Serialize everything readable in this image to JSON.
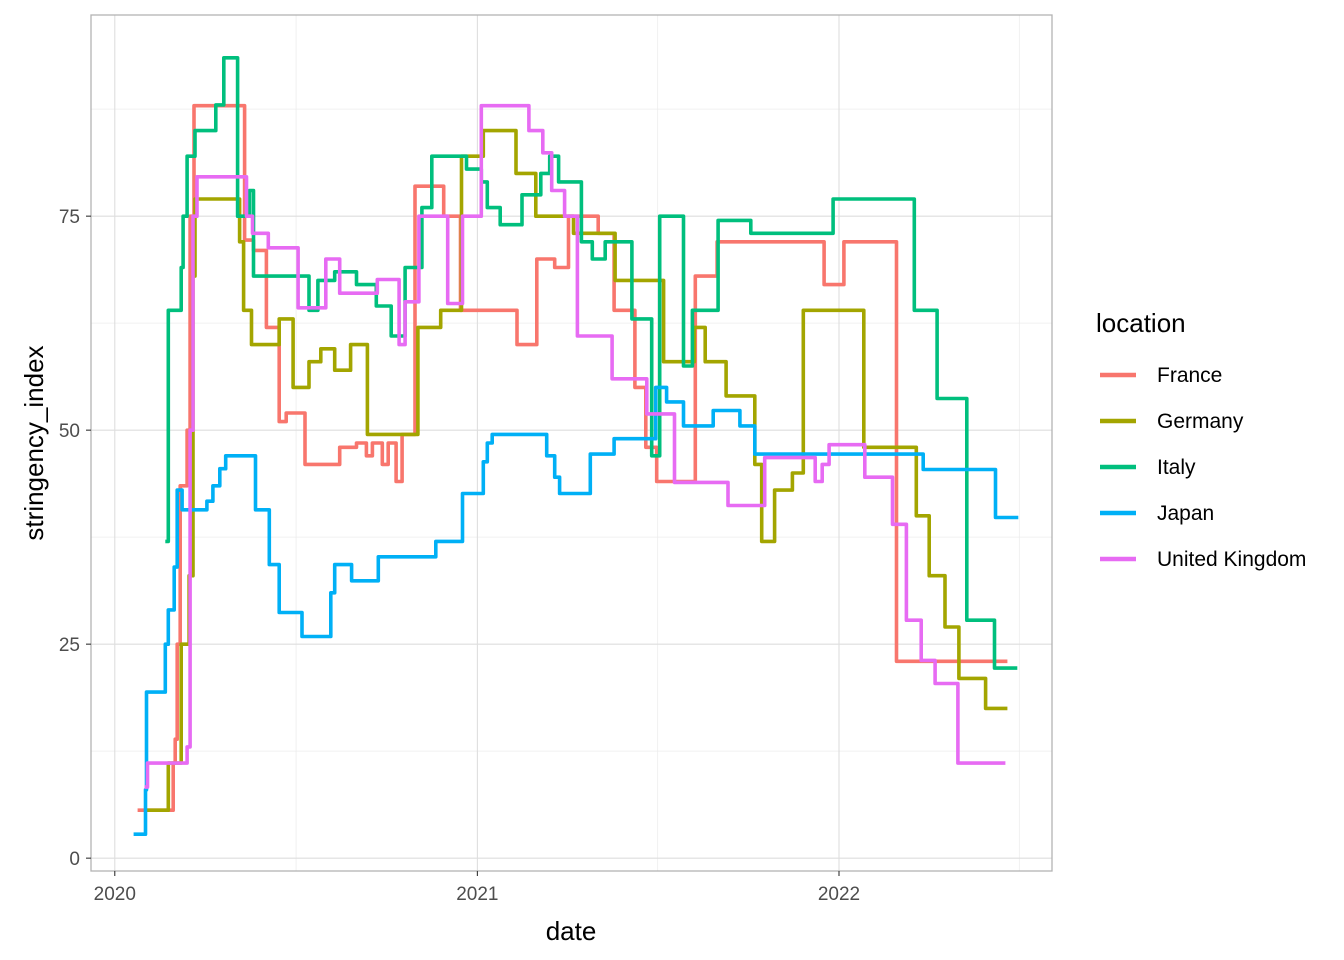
{
  "chart_data": {
    "type": "line",
    "title": "",
    "xlabel": "date",
    "ylabel": "stringency_index",
    "x_type": "date",
    "x_ticks": [
      "2020",
      "2021",
      "2022"
    ],
    "x_tick_dates": [
      "2020-01-01",
      "2021-01-01",
      "2022-01-01"
    ],
    "xlim": [
      "2019-12-08",
      "2022-08-04"
    ],
    "y_ticks": [
      "0",
      "25",
      "50",
      "75"
    ],
    "ylim": [
      -1.5,
      98.5
    ],
    "grid": true,
    "step": true,
    "legend_title": "location",
    "legend_position": "right",
    "series": [
      {
        "name": "France",
        "color": "#F8766D",
        "points": [
          [
            "2020-01-24",
            5.6
          ],
          [
            "2020-02-29",
            11.1
          ],
          [
            "2020-03-02",
            13.9
          ],
          [
            "2020-03-04",
            25.0
          ],
          [
            "2020-03-07",
            43.5
          ],
          [
            "2020-03-14",
            50.0
          ],
          [
            "2020-03-17",
            75.0
          ],
          [
            "2020-03-21",
            87.9
          ],
          [
            "2020-05-11",
            72.2
          ],
          [
            "2020-05-20",
            71.0
          ],
          [
            "2020-06-02",
            62.0
          ],
          [
            "2020-06-15",
            51.0
          ],
          [
            "2020-06-22",
            52.0
          ],
          [
            "2020-07-11",
            46.0
          ],
          [
            "2020-08-15",
            48.0
          ],
          [
            "2020-09-01",
            48.5
          ],
          [
            "2020-09-11",
            47.0
          ],
          [
            "2020-09-17",
            48.5
          ],
          [
            "2020-09-27",
            46.0
          ],
          [
            "2020-10-03",
            48.5
          ],
          [
            "2020-10-11",
            44.0
          ],
          [
            "2020-10-17",
            49.5
          ],
          [
            "2020-10-30",
            78.5
          ],
          [
            "2020-11-28",
            75.0
          ],
          [
            "2020-12-15",
            64.0
          ],
          [
            "2021-01-16",
            64.0
          ],
          [
            "2021-02-10",
            60.0
          ],
          [
            "2021-03-02",
            70.0
          ],
          [
            "2021-03-20",
            69.0
          ],
          [
            "2021-04-03",
            75.0
          ],
          [
            "2021-05-03",
            73.0
          ],
          [
            "2021-05-19",
            64.0
          ],
          [
            "2021-06-09",
            55.0
          ],
          [
            "2021-06-20",
            48.0
          ],
          [
            "2021-07-01",
            44.0
          ],
          [
            "2021-07-21",
            44.0
          ],
          [
            "2021-08-09",
            68.0
          ],
          [
            "2021-08-31",
            72.0
          ],
          [
            "2021-12-17",
            67.0
          ],
          [
            "2022-01-06",
            72.0
          ],
          [
            "2022-02-28",
            23.0
          ],
          [
            "2022-06-20",
            23.0
          ]
        ]
      },
      {
        "name": "Germany",
        "color": "#A3A500",
        "points": [
          [
            "2020-02-01",
            5.6
          ],
          [
            "2020-02-24",
            11.1
          ],
          [
            "2020-03-08",
            25.0
          ],
          [
            "2020-03-16",
            33.0
          ],
          [
            "2020-03-20",
            68.0
          ],
          [
            "2020-03-22",
            77.0
          ],
          [
            "2020-05-06",
            72.0
          ],
          [
            "2020-05-10",
            64.0
          ],
          [
            "2020-05-18",
            60.0
          ],
          [
            "2020-06-15",
            63.0
          ],
          [
            "2020-06-29",
            55.0
          ],
          [
            "2020-07-15",
            58.0
          ],
          [
            "2020-07-27",
            59.5
          ],
          [
            "2020-08-10",
            57.0
          ],
          [
            "2020-08-26",
            60.0
          ],
          [
            "2020-09-12",
            49.5
          ],
          [
            "2020-10-15",
            49.5
          ],
          [
            "2020-11-02",
            62.0
          ],
          [
            "2020-11-25",
            64.0
          ],
          [
            "2020-12-16",
            82.0
          ],
          [
            "2021-01-07",
            85.0
          ],
          [
            "2021-02-09",
            80.0
          ],
          [
            "2021-03-01",
            75.0
          ],
          [
            "2021-04-08",
            73.0
          ],
          [
            "2021-05-20",
            67.5
          ],
          [
            "2021-07-08",
            58.0
          ],
          [
            "2021-08-08",
            62.0
          ],
          [
            "2021-08-19",
            58.0
          ],
          [
            "2021-09-09",
            54.0
          ],
          [
            "2021-10-08",
            46.0
          ],
          [
            "2021-10-15",
            37.0
          ],
          [
            "2021-10-28",
            43.0
          ],
          [
            "2021-11-15",
            45.0
          ],
          [
            "2021-11-26",
            64.0
          ],
          [
            "2022-01-26",
            48.0
          ],
          [
            "2022-03-20",
            40.0
          ],
          [
            "2022-04-02",
            33.0
          ],
          [
            "2022-04-18",
            27.0
          ],
          [
            "2022-05-02",
            21.0
          ],
          [
            "2022-05-29",
            17.5
          ],
          [
            "2022-06-20",
            17.5
          ]
        ]
      },
      {
        "name": "Italy",
        "color": "#00BF7D",
        "points": [
          [
            "2020-02-21",
            37.0
          ],
          [
            "2020-02-24",
            64.0
          ],
          [
            "2020-03-08",
            69.0
          ],
          [
            "2020-03-10",
            75.0
          ],
          [
            "2020-03-14",
            82.0
          ],
          [
            "2020-03-22",
            85.0
          ],
          [
            "2020-04-12",
            88.0
          ],
          [
            "2020-04-20",
            93.5
          ],
          [
            "2020-05-04",
            75.0
          ],
          [
            "2020-05-16",
            78.0
          ],
          [
            "2020-05-20",
            68.0
          ],
          [
            "2020-07-15",
            64.0
          ],
          [
            "2020-07-24",
            67.5
          ],
          [
            "2020-08-10",
            68.5
          ],
          [
            "2020-09-01",
            67.0
          ],
          [
            "2020-09-21",
            64.5
          ],
          [
            "2020-10-06",
            61.0
          ],
          [
            "2020-10-20",
            69.0
          ],
          [
            "2020-11-06",
            76.0
          ],
          [
            "2020-11-16",
            82.0
          ],
          [
            "2020-12-21",
            80.5
          ],
          [
            "2021-01-05",
            79.0
          ],
          [
            "2021-01-11",
            76.0
          ],
          [
            "2021-01-24",
            74.0
          ],
          [
            "2021-02-15",
            77.5
          ],
          [
            "2021-03-06",
            80.0
          ],
          [
            "2021-03-15",
            82.0
          ],
          [
            "2021-03-24",
            79.0
          ],
          [
            "2021-04-16",
            72.0
          ],
          [
            "2021-04-27",
            70.0
          ],
          [
            "2021-05-10",
            72.0
          ],
          [
            "2021-06-06",
            63.0
          ],
          [
            "2021-06-26",
            47.0
          ],
          [
            "2021-07-04",
            75.0
          ],
          [
            "2021-07-28",
            57.5
          ],
          [
            "2021-08-06",
            64.0
          ],
          [
            "2021-09-01",
            74.5
          ],
          [
            "2021-10-04",
            73.0
          ],
          [
            "2021-10-26",
            73.0
          ],
          [
            "2021-12-26",
            77.0
          ],
          [
            "2022-03-18",
            64.0
          ],
          [
            "2022-04-10",
            53.7
          ],
          [
            "2022-05-10",
            27.8
          ],
          [
            "2022-06-07",
            22.2
          ],
          [
            "2022-06-30",
            22.2
          ]
        ]
      },
      {
        "name": "Japan",
        "color": "#00B0F6",
        "points": [
          [
            "2020-01-20",
            2.8
          ],
          [
            "2020-02-01",
            8.0
          ],
          [
            "2020-02-02",
            19.4
          ],
          [
            "2020-02-21",
            25.0
          ],
          [
            "2020-02-24",
            29.0
          ],
          [
            "2020-03-01",
            34.0
          ],
          [
            "2020-03-04",
            43.0
          ],
          [
            "2020-03-09",
            40.7
          ],
          [
            "2020-04-03",
            41.7
          ],
          [
            "2020-04-09",
            43.5
          ],
          [
            "2020-04-16",
            45.5
          ],
          [
            "2020-04-22",
            47.0
          ],
          [
            "2020-05-22",
            40.7
          ],
          [
            "2020-06-05",
            34.3
          ],
          [
            "2020-06-15",
            28.7
          ],
          [
            "2020-07-08",
            25.9
          ],
          [
            "2020-08-06",
            31.0
          ],
          [
            "2020-08-10",
            34.3
          ],
          [
            "2020-08-27",
            32.4
          ],
          [
            "2020-09-23",
            35.2
          ],
          [
            "2020-11-20",
            37.0
          ],
          [
            "2020-12-17",
            42.6
          ],
          [
            "2021-01-07",
            46.3
          ],
          [
            "2021-01-11",
            48.5
          ],
          [
            "2021-01-16",
            49.5
          ],
          [
            "2021-03-12",
            47.0
          ],
          [
            "2021-03-20",
            44.5
          ],
          [
            "2021-03-25",
            42.6
          ],
          [
            "2021-04-25",
            47.2
          ],
          [
            "2021-05-19",
            49.0
          ],
          [
            "2021-06-30",
            55.0
          ],
          [
            "2021-07-11",
            53.3
          ],
          [
            "2021-07-28",
            50.5
          ],
          [
            "2021-08-27",
            52.3
          ],
          [
            "2021-09-23",
            50.5
          ],
          [
            "2021-10-08",
            47.2
          ],
          [
            "2022-01-21",
            47.2
          ],
          [
            "2022-03-27",
            45.4
          ],
          [
            "2022-06-08",
            39.8
          ],
          [
            "2022-07-01",
            39.8
          ]
        ]
      },
      {
        "name": "United Kingdom",
        "color": "#E76BF3",
        "points": [
          [
            "2020-01-31",
            8.3
          ],
          [
            "2020-02-03",
            11.1
          ],
          [
            "2020-03-14",
            13.0
          ],
          [
            "2020-03-17",
            50.0
          ],
          [
            "2020-03-20",
            75.0
          ],
          [
            "2020-03-24",
            79.6
          ],
          [
            "2020-05-13",
            75.0
          ],
          [
            "2020-05-19",
            73.0
          ],
          [
            "2020-06-04",
            71.3
          ],
          [
            "2020-07-04",
            64.3
          ],
          [
            "2020-08-01",
            70.0
          ],
          [
            "2020-08-15",
            66.0
          ],
          [
            "2020-09-22",
            67.6
          ],
          [
            "2020-10-14",
            60.0
          ],
          [
            "2020-10-20",
            65.0
          ],
          [
            "2020-11-03",
            75.0
          ],
          [
            "2020-12-02",
            64.8
          ],
          [
            "2020-12-17",
            75.0
          ],
          [
            "2021-01-05",
            87.9
          ],
          [
            "2021-02-22",
            85.0
          ],
          [
            "2021-03-08",
            82.4
          ],
          [
            "2021-03-17",
            78.0
          ],
          [
            "2021-03-30",
            75.0
          ],
          [
            "2021-04-12",
            61.0
          ],
          [
            "2021-05-17",
            56.0
          ],
          [
            "2021-06-21",
            51.9
          ],
          [
            "2021-07-19",
            43.9
          ],
          [
            "2021-09-11",
            41.2
          ],
          [
            "2021-10-18",
            46.8
          ],
          [
            "2021-12-08",
            44.0
          ],
          [
            "2021-12-15",
            46.0
          ],
          [
            "2021-12-22",
            48.3
          ],
          [
            "2022-01-27",
            44.5
          ],
          [
            "2022-02-24",
            39.0
          ],
          [
            "2022-03-10",
            27.8
          ],
          [
            "2022-03-25",
            23.1
          ],
          [
            "2022-04-08",
            20.4
          ],
          [
            "2022-05-01",
            11.1
          ],
          [
            "2022-06-18",
            11.1
          ]
        ]
      }
    ]
  }
}
